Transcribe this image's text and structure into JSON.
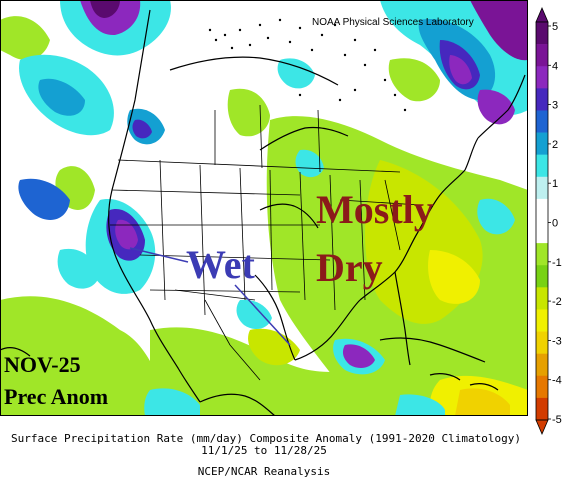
{
  "map": {
    "credit": "NOAA Physical Sciences Laboratory",
    "annotations": {
      "wet": "Wet",
      "mostly": "Mostly",
      "dry": "Dry"
    },
    "month_label": "NOV-25",
    "variable_label": "Prec Anom"
  },
  "caption": {
    "line1": "Surface Precipitation Rate (mm/day) Composite Anomaly (1991-2020 Climatology)",
    "line2": "11/1/25 to 11/28/25",
    "line3": "NCEP/NCAR Reanalysis"
  },
  "colorbar": {
    "labels": [
      "5",
      "4",
      "3",
      "2",
      "1",
      "0",
      "-1",
      "-2",
      "-3",
      "-4",
      "-5"
    ],
    "colors": [
      "#5a0a6e",
      "#7a1496",
      "#8c28be",
      "#4628be",
      "#1e64d2",
      "#14a0d2",
      "#3ce6e6",
      "#bef0f0",
      "#ffffff",
      "#ffffff",
      "#a0e628",
      "#78d214",
      "#c8e600",
      "#f0f000",
      "#f0d200",
      "#e6a000",
      "#e67800",
      "#d23c00"
    ],
    "extend": "both"
  }
}
